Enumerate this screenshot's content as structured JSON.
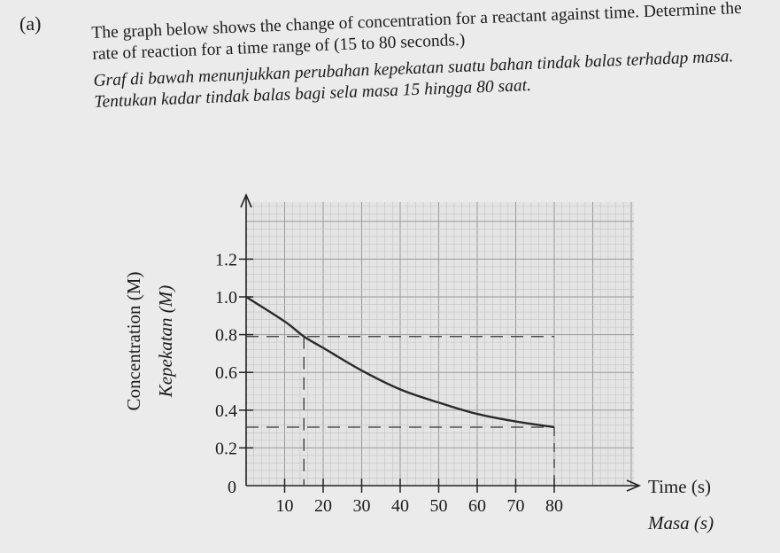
{
  "question": {
    "label": "(a)",
    "english": "The graph below shows the change of concentration for a reactant against time. Determine the rate of reaction for a time range of (15 to 80 seconds.)",
    "malay": "Graf di bawah menunjukkan perubahan kepekatan suatu bahan tindak balas terhadap masa. Tentukan kadar tindak balas bagi sela masa 15 hingga 80 saat."
  },
  "chart_data": {
    "type": "line",
    "xlabel": "Time (s)",
    "xlabel_alt": "Masa (s)",
    "ylabel": "Concentration (M)",
    "ylabel_alt": "Kepekatan (M)",
    "xlim": [
      0,
      100
    ],
    "ylim": [
      0,
      1.5
    ],
    "x_ticks": [
      10,
      20,
      30,
      40,
      50,
      60,
      70,
      80
    ],
    "y_ticks": [
      0.2,
      0.4,
      0.6,
      0.8,
      1.0,
      1.2
    ],
    "x_tick_labels": [
      "10",
      "20",
      "30",
      "40",
      "50",
      "60",
      "70",
      "80"
    ],
    "y_tick_labels": [
      "0.2",
      "0.4",
      "0.6",
      "0.8",
      "1.0",
      "1.2"
    ],
    "origin_label": "0",
    "grid": true,
    "series": [
      {
        "x": [
          0,
          10,
          15,
          20,
          30,
          40,
          50,
          60,
          70,
          80
        ],
        "y": [
          1.0,
          0.87,
          0.79,
          0.73,
          0.61,
          0.51,
          0.44,
          0.38,
          0.34,
          0.31
        ]
      }
    ],
    "annotations": {
      "dashed_line_y": [
        0.79,
        0.31
      ],
      "dashed_line_x": [
        15
      ]
    }
  }
}
